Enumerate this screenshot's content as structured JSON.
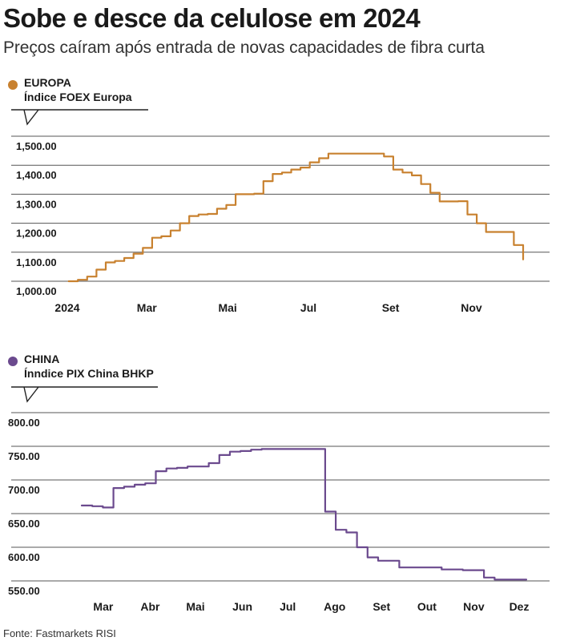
{
  "title": "Sobe e desce da celulose em 2024",
  "subtitle": "Preços caíram após entrada de novas capacidades de fibra curta",
  "source": "Fonte: Fastmarkets RISI",
  "colors": {
    "europa": "#c8812f",
    "china": "#6b4a8e",
    "grid": "#555555",
    "text": "#1a1a1a"
  },
  "chart_data": [
    {
      "type": "line",
      "name": "EUROPA",
      "index_label": "Índice FOEX Europa",
      "color": "#c8812f",
      "x_tick_labels": [
        "2024",
        "Mar",
        "Mai",
        "Jul",
        "Set",
        "Nov"
      ],
      "y_tick_labels": [
        "1,500.00",
        "1,400.00",
        "1,300.00",
        "1,200.00",
        "1,100.00",
        "1,000.00"
      ],
      "ylim": [
        1000,
        1500
      ],
      "grid": true,
      "x": [
        "2024-01-02",
        "2024-01-09",
        "2024-01-16",
        "2024-01-23",
        "2024-01-30",
        "2024-02-06",
        "2024-02-13",
        "2024-02-20",
        "2024-02-27",
        "2024-03-05",
        "2024-03-12",
        "2024-03-19",
        "2024-03-26",
        "2024-04-02",
        "2024-04-09",
        "2024-04-16",
        "2024-04-23",
        "2024-04-30",
        "2024-05-07",
        "2024-05-14",
        "2024-05-21",
        "2024-05-28",
        "2024-06-04",
        "2024-06-11",
        "2024-06-18",
        "2024-06-25",
        "2024-07-02",
        "2024-07-09",
        "2024-07-16",
        "2024-07-23",
        "2024-07-30",
        "2024-08-06",
        "2024-08-13",
        "2024-08-20",
        "2024-08-27",
        "2024-09-03",
        "2024-09-10",
        "2024-09-17",
        "2024-09-24",
        "2024-10-01",
        "2024-10-08",
        "2024-10-15",
        "2024-10-22",
        "2024-10-29",
        "2024-11-05",
        "2024-11-12",
        "2024-11-19",
        "2024-11-26",
        "2024-12-03",
        "2024-12-10"
      ],
      "values": [
        1000,
        1005,
        1016,
        1040,
        1065,
        1070,
        1080,
        1095,
        1115,
        1150,
        1155,
        1175,
        1200,
        1225,
        1230,
        1232,
        1250,
        1263,
        1300,
        1300,
        1302,
        1345,
        1370,
        1375,
        1385,
        1392,
        1410,
        1424,
        1440,
        1440,
        1440,
        1440,
        1440,
        1440,
        1430,
        1385,
        1375,
        1365,
        1335,
        1305,
        1275,
        1275,
        1276,
        1230,
        1200,
        1170,
        1170,
        1170,
        1125,
        1075
      ]
    },
    {
      "type": "line",
      "name": "CHINA",
      "index_label": "Ínndice PIX China BHKP",
      "color": "#6b4a8e",
      "x_tick_labels": [
        "Mar",
        "Abr",
        "Mai",
        "Jun",
        "Jul",
        "Ago",
        "Set",
        "Out",
        "Nov",
        "Dez"
      ],
      "y_tick_labels": [
        "800.00",
        "750.00",
        "700.00",
        "650.00",
        "600.00",
        "550.00"
      ],
      "ylim": [
        550,
        800
      ],
      "grid": true,
      "x": [
        "2024-02-29",
        "2024-03-07",
        "2024-03-14",
        "2024-03-21",
        "2024-03-28",
        "2024-04-04",
        "2024-04-11",
        "2024-04-18",
        "2024-04-25",
        "2024-05-02",
        "2024-05-09",
        "2024-05-16",
        "2024-05-23",
        "2024-05-30",
        "2024-06-06",
        "2024-06-13",
        "2024-06-20",
        "2024-06-27",
        "2024-07-04",
        "2024-07-11",
        "2024-07-18",
        "2024-07-25",
        "2024-08-01",
        "2024-08-08",
        "2024-08-15",
        "2024-08-22",
        "2024-08-29",
        "2024-09-05",
        "2024-09-12",
        "2024-09-19",
        "2024-09-26",
        "2024-10-03",
        "2024-10-10",
        "2024-10-17",
        "2024-10-24",
        "2024-10-31",
        "2024-11-07",
        "2024-11-14",
        "2024-11-21",
        "2024-11-28",
        "2024-12-05",
        "2024-12-12",
        "2024-12-19"
      ],
      "values": [
        662,
        661,
        659,
        688,
        690,
        693,
        695,
        713,
        717,
        718,
        720,
        720,
        725,
        737,
        742,
        743,
        745,
        746,
        746,
        746,
        746,
        746,
        746,
        653,
        626,
        622,
        600,
        585,
        580,
        580,
        570,
        570,
        570,
        570,
        567,
        567,
        566,
        566,
        555,
        552,
        552,
        552,
        552
      ]
    }
  ]
}
